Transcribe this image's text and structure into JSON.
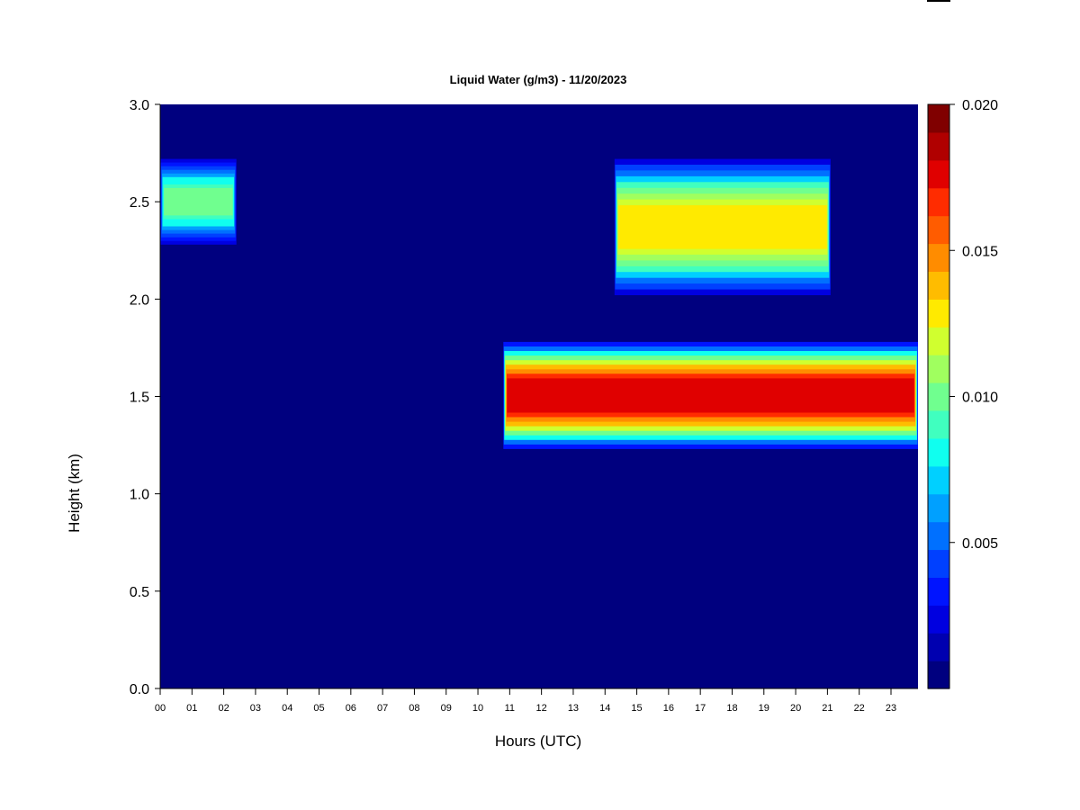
{
  "chart_data": {
    "type": "heatmap",
    "title": "Liquid Water (g/m3) - 11/20/2023",
    "xlabel": "Hours (UTC)",
    "ylabel": "Height (km)",
    "x_unit": "hours UTC",
    "xlim": [
      0,
      23.85
    ],
    "ylim": [
      0,
      3.0
    ],
    "x_tick_labels": [
      "00",
      "01",
      "02",
      "03",
      "04",
      "05",
      "06",
      "07",
      "08",
      "09",
      "10",
      "11",
      "12",
      "13",
      "14",
      "15",
      "16",
      "17",
      "18",
      "19",
      "20",
      "21",
      "22",
      "23"
    ],
    "y_ticks": [
      0.0,
      0.5,
      1.0,
      1.5,
      2.0,
      2.5,
      3.0
    ],
    "y_tick_labels": [
      "0.0",
      "0.5",
      "1.0",
      "1.5",
      "2.0",
      "2.5",
      "3.0"
    ],
    "colorbar": {
      "min": 0.001,
      "max": 0.02,
      "levels": 19,
      "tick_values": [
        0.005,
        0.01,
        0.015,
        0.02
      ],
      "tick_labels": [
        "0.005",
        "0.010",
        "0.015",
        "0.020"
      ],
      "colors": [
        "#00007f",
        "#0000b0",
        "#0000e0",
        "#0014ff",
        "#0040ff",
        "#0070ff",
        "#00a0ff",
        "#00d0ff",
        "#10ffef",
        "#40ffbf",
        "#70ff8f",
        "#a0ff5f",
        "#d0ff2f",
        "#ffea00",
        "#ffbc00",
        "#ff8c00",
        "#ff5c00",
        "#ff2c00",
        "#e00000",
        "#b00000",
        "#800000"
      ]
    },
    "background_value": 0.0,
    "cloud_layers": [
      {
        "x_start": 0.0,
        "x_end": 2.4,
        "y_bottom": 2.28,
        "y_top": 2.72,
        "peak": 0.0105
      },
      {
        "x_start": 14.3,
        "x_end": 21.1,
        "y_bottom": 2.02,
        "y_top": 2.72,
        "peak": 0.0135
      },
      {
        "x_start": 10.8,
        "x_end": 23.85,
        "y_bottom": 1.23,
        "y_top": 1.78,
        "peak": 0.0185
      }
    ]
  }
}
